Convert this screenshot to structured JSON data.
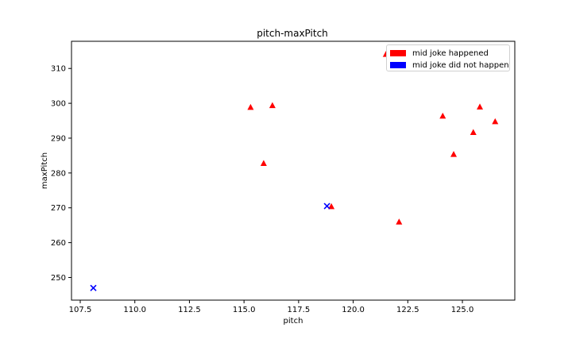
{
  "chart_data": {
    "type": "scatter",
    "title": "pitch-maxPitch",
    "xlabel": "pitch",
    "ylabel": "maxPitch",
    "xlim": [
      107.1,
      127.4
    ],
    "ylim": [
      243.5,
      317.8
    ],
    "xticks": [
      107.5,
      110.0,
      112.5,
      115.0,
      117.5,
      120.0,
      122.5,
      125.0
    ],
    "xtick_labels": [
      "107.5",
      "110.0",
      "112.5",
      "115.0",
      "117.5",
      "120.0",
      "122.5",
      "125.0"
    ],
    "yticks": [
      250,
      260,
      270,
      280,
      290,
      300,
      310
    ],
    "ytick_labels": [
      "250",
      "260",
      "270",
      "280",
      "290",
      "300",
      "310"
    ],
    "grid": false,
    "legend_position": "top-right",
    "series": [
      {
        "name": "mid joke happened",
        "color": "#ff0000",
        "marker": "triangle",
        "points": [
          {
            "x": 115.3,
            "y": 298.8
          },
          {
            "x": 116.3,
            "y": 299.3
          },
          {
            "x": 115.9,
            "y": 282.7
          },
          {
            "x": 119.0,
            "y": 270.3
          },
          {
            "x": 121.5,
            "y": 314.0
          },
          {
            "x": 122.1,
            "y": 265.9
          },
          {
            "x": 124.1,
            "y": 296.3
          },
          {
            "x": 124.6,
            "y": 285.3
          },
          {
            "x": 125.5,
            "y": 291.6
          },
          {
            "x": 125.8,
            "y": 298.9
          },
          {
            "x": 126.5,
            "y": 294.7
          }
        ]
      },
      {
        "name": "mid joke did not happen",
        "color": "#0000ff",
        "marker": "x",
        "points": [
          {
            "x": 108.1,
            "y": 247.0
          },
          {
            "x": 118.8,
            "y": 270.5
          }
        ]
      }
    ]
  }
}
